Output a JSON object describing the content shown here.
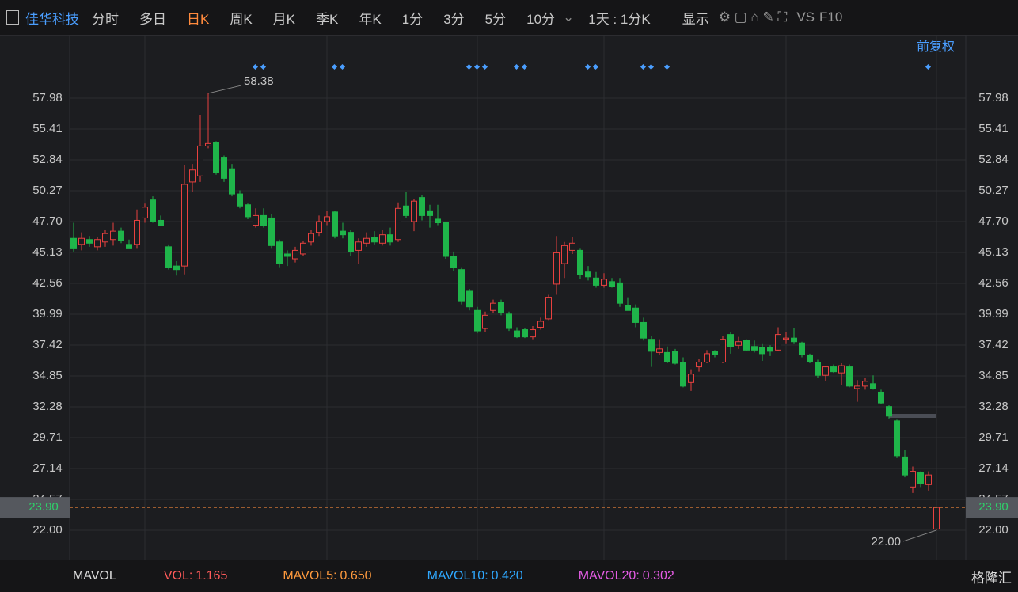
{
  "toolbar": {
    "stock": "佳华科技",
    "tabs": [
      "分时",
      "多日",
      "日K",
      "周K",
      "月K",
      "季K",
      "年K",
      "1分",
      "3分",
      "5分",
      "10分"
    ],
    "active": "日K",
    "period": "1天 : 1分K",
    "display": "显示",
    "vs": "VS",
    "f10": "F10",
    "adjust": "前复权"
  },
  "chart_data": {
    "type": "candlestick",
    "up_color": "#e8413f",
    "down_color": "#1fb54a",
    "grid": true,
    "ylim": [
      19.36,
      60.88
    ],
    "yticks": [
      {
        "value": 57.98,
        "label": "57.98"
      },
      {
        "value": 55.41,
        "label": "55.41"
      },
      {
        "value": 52.84,
        "label": "52.84"
      },
      {
        "value": 50.27,
        "label": "50.27"
      },
      {
        "value": 47.7,
        "label": "47.70"
      },
      {
        "value": 45.13,
        "label": "45.13"
      },
      {
        "value": 42.56,
        "label": "42.56"
      },
      {
        "value": 39.99,
        "label": "39.99"
      },
      {
        "value": 37.42,
        "label": "37.42"
      },
      {
        "value": 34.85,
        "label": "34.85"
      },
      {
        "value": 32.28,
        "label": "32.28"
      },
      {
        "value": 29.71,
        "label": "29.71"
      },
      {
        "value": 27.14,
        "label": "27.14"
      },
      {
        "value": 24.57,
        "label": "24.57"
      },
      {
        "value": 22.0,
        "label": "22.00"
      }
    ],
    "open": [
      46.3,
      45.8,
      46.2,
      45.6,
      46.0,
      46.2,
      46.9,
      45.8,
      45.8,
      48.0,
      49.5,
      47.8,
      45.6,
      44.0,
      44.0,
      51.0,
      51.5,
      54.0,
      54.3,
      53.0,
      52.1,
      50.0,
      49.1,
      47.4,
      48.2,
      48.0,
      46.0,
      45.0,
      44.6,
      45.0,
      46.0,
      46.8,
      47.7,
      48.5,
      46.9,
      46.8,
      45.3,
      45.9,
      46.4,
      45.9,
      46.6,
      46.2,
      49.0,
      47.7,
      49.7,
      48.6,
      47.9,
      47.6,
      44.8,
      43.7,
      41.9,
      40.3,
      38.8,
      40.3,
      41.0,
      40.0,
      38.6,
      38.7,
      38.1,
      38.9,
      39.6,
      42.5,
      44.2,
      45.3,
      45.3,
      43.5,
      43.0,
      42.4,
      42.7,
      42.6,
      40.7,
      40.5,
      39.3,
      37.9,
      36.8,
      36.8,
      36.9,
      36.0,
      34.3,
      35.6,
      36.0,
      36.9,
      36.0,
      38.3,
      37.4,
      37.8,
      37.3,
      37.2,
      37.2,
      37.0,
      37.9,
      38.0,
      37.6,
      36.6,
      36.0,
      34.9,
      35.6,
      35.1,
      35.6,
      33.8,
      34.0,
      34.2,
      33.5,
      32.3,
      31.1,
      28.1,
      25.6,
      26.8,
      25.8,
      22.1
    ],
    "high": [
      47.6,
      46.8,
      46.5,
      46.4,
      47.0,
      47.6,
      47.2,
      46.2,
      48.7,
      49.2,
      49.8,
      48.2,
      45.8,
      44.4,
      52.4,
      52.5,
      56.6,
      58.38,
      54.4,
      53.2,
      52.5,
      50.3,
      49.2,
      48.8,
      48.8,
      48.3,
      46.2,
      45.3,
      45.6,
      46.1,
      47.0,
      48.2,
      48.6,
      48.6,
      47.6,
      47.0,
      46.3,
      46.8,
      46.9,
      47.0,
      47.2,
      49.3,
      50.2,
      49.6,
      49.9,
      49.1,
      49.1,
      47.7,
      45.2,
      43.9,
      42.1,
      40.6,
      40.2,
      41.2,
      41.2,
      40.2,
      38.9,
      38.8,
      39.0,
      39.7,
      41.6,
      46.5,
      46.0,
      46.4,
      45.5,
      44.0,
      43.5,
      43.4,
      43.0,
      43.0,
      41.4,
      40.8,
      39.7,
      38.2,
      37.9,
      37.3,
      37.1,
      36.4,
      35.4,
      36.3,
      37.0,
      37.0,
      38.2,
      38.5,
      38.1,
      37.9,
      37.8,
      37.5,
      37.4,
      38.9,
      38.5,
      38.8,
      37.7,
      36.7,
      36.2,
      35.7,
      35.8,
      35.9,
      35.8,
      34.5,
      34.7,
      34.9,
      33.7,
      32.4,
      31.2,
      28.7,
      27.3,
      26.9,
      26.9,
      23.9
    ],
    "low": [
      45.2,
      45.3,
      45.6,
      45.3,
      45.6,
      45.7,
      45.9,
      45.5,
      45.5,
      47.6,
      47.6,
      47.3,
      43.7,
      43.2,
      43.3,
      50.2,
      51.0,
      53.8,
      51.6,
      51.0,
      49.8,
      48.8,
      47.9,
      47.2,
      47.2,
      45.5,
      43.9,
      44.0,
      44.3,
      44.8,
      45.7,
      46.5,
      47.4,
      46.3,
      46.3,
      44.8,
      44.2,
      45.6,
      45.8,
      45.7,
      45.7,
      46.0,
      48.0,
      46.9,
      47.8,
      47.2,
      47.4,
      44.6,
      43.6,
      40.8,
      40.3,
      38.4,
      38.5,
      40.1,
      39.9,
      38.6,
      38.0,
      38.0,
      37.9,
      38.7,
      39.5,
      41.6,
      43.0,
      45.0,
      42.9,
      42.8,
      42.2,
      42.2,
      42.2,
      40.6,
      40.3,
      38.9,
      37.8,
      35.6,
      36.6,
      35.9,
      35.8,
      33.9,
      33.6,
      35.2,
      35.9,
      36.4,
      35.9,
      36.7,
      37.1,
      36.9,
      36.8,
      36.1,
      36.5,
      36.9,
      37.5,
      37.5,
      36.4,
      35.9,
      34.7,
      34.4,
      35.1,
      34.1,
      33.9,
      32.7,
      33.7,
      33.7,
      32.5,
      31.3,
      28.0,
      26.4,
      25.1,
      25.6,
      25.3,
      22.0
    ],
    "close": [
      45.5,
      46.3,
      45.9,
      46.2,
      46.7,
      46.9,
      46.1,
      45.5,
      47.8,
      48.9,
      47.7,
      47.4,
      43.9,
      43.7,
      50.8,
      52.0,
      54.0,
      54.2,
      51.8,
      51.3,
      50.0,
      49.0,
      48.1,
      48.2,
      47.4,
      45.7,
      44.2,
      44.8,
      45.3,
      45.9,
      46.7,
      47.7,
      48.1,
      46.5,
      46.6,
      45.2,
      46.0,
      46.3,
      46.0,
      46.6,
      46.0,
      48.8,
      48.2,
      49.4,
      48.2,
      48.2,
      47.6,
      44.8,
      43.9,
      41.1,
      40.6,
      38.6,
      39.9,
      40.9,
      40.1,
      38.8,
      38.1,
      38.1,
      38.7,
      39.4,
      41.4,
      45.1,
      45.7,
      45.9,
      43.3,
      43.1,
      42.4,
      42.9,
      42.3,
      40.9,
      40.3,
      39.3,
      38.0,
      36.9,
      37.1,
      36.0,
      35.9,
      34.0,
      35.0,
      36.0,
      36.7,
      36.6,
      37.9,
      37.3,
      37.7,
      37.0,
      37.0,
      36.7,
      36.9,
      38.3,
      38.0,
      37.7,
      36.6,
      36.0,
      34.9,
      35.6,
      35.2,
      35.7,
      34.0,
      34.0,
      34.4,
      33.8,
      32.6,
      31.5,
      28.2,
      26.6,
      26.9,
      25.9,
      26.6,
      23.9
    ],
    "annotations": [
      {
        "value": 58.38,
        "label": "58.38"
      },
      {
        "value": 22.0,
        "label": "22.00"
      }
    ],
    "current_price": {
      "value": 23.9,
      "label": "23.90"
    }
  },
  "footer": {
    "indicator": "MAVOL",
    "items": [
      {
        "name": "VOL:",
        "value": "1.165",
        "color": "#ff5a5a"
      },
      {
        "name": "MAVOL5:",
        "value": "0.650",
        "color": "#ff9a3d"
      },
      {
        "name": "MAVOL10:",
        "value": "0.420",
        "color": "#2fa8ff"
      },
      {
        "name": "MAVOL20:",
        "value": "0.302",
        "color": "#e65ce6"
      }
    ],
    "logo": "格隆汇"
  }
}
